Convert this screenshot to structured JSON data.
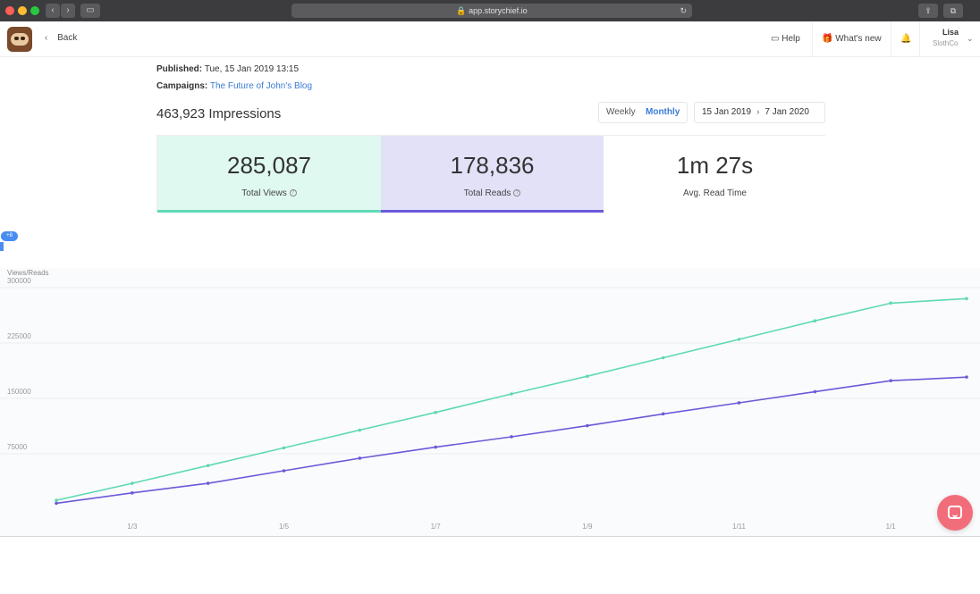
{
  "browser": {
    "url": "app.storychief.io",
    "lock_glyph": "🔒",
    "reload_glyph": "↻"
  },
  "header": {
    "back_label": "Back",
    "help_label": "Help",
    "whats_new_label": "What's new",
    "user_name": "Lisa",
    "user_org": "SlothCo"
  },
  "meta": {
    "published_label": "Published:",
    "published_value": "Tue, 15 Jan 2019 13:15",
    "campaigns_label": "Campaigns:",
    "campaign_link": "The Future of John's Blog"
  },
  "impressions": "463,923 Impressions",
  "period_toggle": {
    "weekly": "Weekly",
    "monthly": "Monthly",
    "selected": "Monthly"
  },
  "date_range": {
    "start": "15 Jan 2019",
    "end": "7 Jan 2020"
  },
  "stats": {
    "views_value": "285,087",
    "views_label": "Total Views",
    "reads_value": "178,836",
    "reads_label": "Total Reads",
    "read_time_value": "1m 27s",
    "read_time_label": "Avg. Read Time"
  },
  "edge_badge": "+8",
  "colors": {
    "views": "#5fd9b5",
    "reads": "#6a5ad8",
    "link": "#3a7bd5",
    "chat": "#f26d7a"
  },
  "chart_data": {
    "type": "line",
    "ylabel": "Views/Reads",
    "ylim": [
      0,
      300000
    ],
    "yticks": [
      75000,
      150000,
      225000,
      300000
    ],
    "x_tick_labels": [
      "1/3",
      "1/5",
      "1/7",
      "1/9",
      "1/11",
      "1/1"
    ],
    "x": [
      0,
      1,
      2,
      3,
      4,
      5,
      6,
      7,
      8,
      9,
      10,
      11,
      12
    ],
    "x_tick_positions": [
      1,
      3,
      5,
      7,
      9,
      11
    ],
    "series": [
      {
        "values": [
          12000,
          35000,
          59000,
          83000,
          107000,
          131000,
          156000,
          180000,
          205000,
          230000,
          255000,
          279000,
          285087
        ]
      },
      {
        "values": [
          8000,
          22000,
          35000,
          52000,
          69000,
          84000,
          98000,
          113000,
          129000,
          144000,
          159000,
          174000,
          178836
        ]
      }
    ],
    "grid": true
  }
}
